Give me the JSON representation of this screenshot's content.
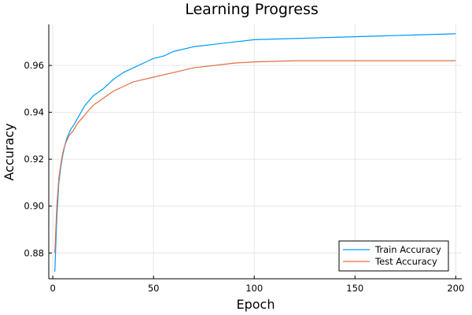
{
  "chart_data": {
    "type": "line",
    "title": "Learning Progress",
    "xlabel": "Epoch",
    "ylabel": "Accuracy",
    "xlim": [
      -2,
      203
    ],
    "ylim": [
      0.869,
      0.9775
    ],
    "xticks": [
      0,
      50,
      100,
      150,
      200
    ],
    "xtick_labels": [
      "0",
      "50",
      "100",
      "150",
      "200"
    ],
    "yticks": [
      0.88,
      0.9,
      0.92,
      0.94,
      0.96
    ],
    "ytick_labels": [
      "0.88",
      "0.90",
      "0.92",
      "0.94",
      "0.96"
    ],
    "grid": true,
    "legend_position": "bottom-right",
    "series": [
      {
        "name": "Train Accuracy",
        "color": "#009AFA",
        "points": [
          [
            1,
            0.872
          ],
          [
            2,
            0.895
          ],
          [
            3,
            0.91
          ],
          [
            4,
            0.917
          ],
          [
            5,
            0.922
          ],
          [
            6,
            0.926
          ],
          [
            7,
            0.929
          ],
          [
            8,
            0.931
          ],
          [
            9,
            0.933
          ],
          [
            10,
            0.934
          ],
          [
            12,
            0.937
          ],
          [
            14,
            0.94
          ],
          [
            16,
            0.943
          ],
          [
            18,
            0.945
          ],
          [
            20,
            0.947
          ],
          [
            25,
            0.95
          ],
          [
            30,
            0.954
          ],
          [
            35,
            0.957
          ],
          [
            40,
            0.959
          ],
          [
            45,
            0.961
          ],
          [
            50,
            0.963
          ],
          [
            55,
            0.964
          ],
          [
            60,
            0.966
          ],
          [
            70,
            0.968
          ],
          [
            80,
            0.969
          ],
          [
            90,
            0.97
          ],
          [
            100,
            0.971
          ],
          [
            120,
            0.9715
          ],
          [
            140,
            0.972
          ],
          [
            160,
            0.9725
          ],
          [
            180,
            0.973
          ],
          [
            200,
            0.9735
          ]
        ]
      },
      {
        "name": "Test Accuracy",
        "color": "#E26F46",
        "points": [
          [
            1,
            0.88
          ],
          [
            2,
            0.9
          ],
          [
            3,
            0.912
          ],
          [
            4,
            0.918
          ],
          [
            5,
            0.923
          ],
          [
            6,
            0.926
          ],
          [
            7,
            0.928
          ],
          [
            8,
            0.93
          ],
          [
            9,
            0.931
          ],
          [
            10,
            0.932
          ],
          [
            12,
            0.935
          ],
          [
            14,
            0.937
          ],
          [
            16,
            0.939
          ],
          [
            18,
            0.941
          ],
          [
            20,
            0.943
          ],
          [
            25,
            0.946
          ],
          [
            30,
            0.949
          ],
          [
            35,
            0.951
          ],
          [
            40,
            0.953
          ],
          [
            45,
            0.954
          ],
          [
            50,
            0.955
          ],
          [
            55,
            0.956
          ],
          [
            60,
            0.957
          ],
          [
            70,
            0.959
          ],
          [
            80,
            0.96
          ],
          [
            90,
            0.961
          ],
          [
            100,
            0.9615
          ],
          [
            120,
            0.962
          ],
          [
            140,
            0.962
          ],
          [
            160,
            0.962
          ],
          [
            180,
            0.962
          ],
          [
            200,
            0.962
          ]
        ]
      }
    ]
  }
}
